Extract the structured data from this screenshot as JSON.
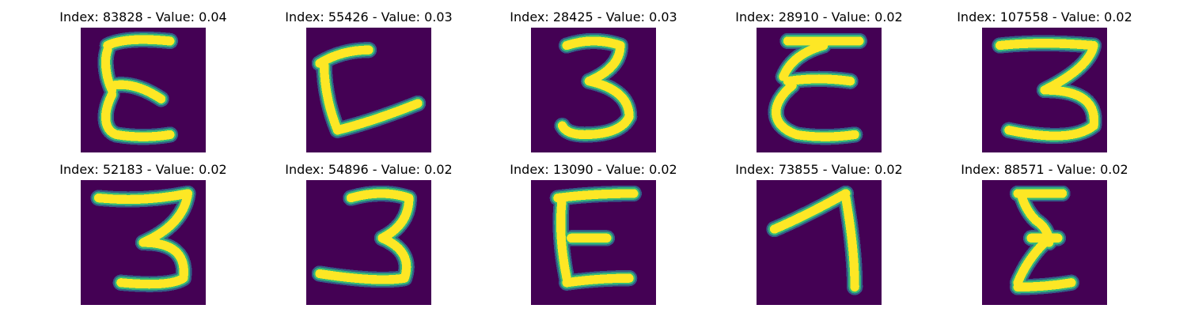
{
  "figure": {
    "background_color": "#ffffff",
    "colormap": [
      "#440154",
      "#31688e",
      "#35b779",
      "#fde725"
    ],
    "panels": [
      {
        "title": "Index: 83828 - Value: 0.04",
        "index": 83828,
        "value": 0.04,
        "glyph": "epsilon"
      },
      {
        "title": "Index: 55426 - Value: 0.03",
        "index": 55426,
        "value": 0.03,
        "glyph": "bracket-l"
      },
      {
        "title": "Index: 28425 - Value: 0.03",
        "index": 28425,
        "value": 0.03,
        "glyph": "three"
      },
      {
        "title": "Index: 28910 - Value: 0.02",
        "index": 28910,
        "value": 0.02,
        "glyph": "epsilon-wide"
      },
      {
        "title": "Index: 107558 - Value: 0.02",
        "index": 107558,
        "value": 0.02,
        "glyph": "three-wide"
      },
      {
        "title": "Index: 52183 - Value: 0.02",
        "index": 52183,
        "value": 0.02,
        "glyph": "three-thin"
      },
      {
        "title": "Index: 54896 - Value: 0.02",
        "index": 54896,
        "value": 0.02,
        "glyph": "three-flat"
      },
      {
        "title": "Index: 13090 - Value: 0.02",
        "index": 13090,
        "value": 0.02,
        "glyph": "e-block"
      },
      {
        "title": "Index: 73855 - Value: 0.02",
        "index": 73855,
        "value": 0.02,
        "glyph": "seven"
      },
      {
        "title": "Index: 88571 - Value: 0.02",
        "index": 88571,
        "value": 0.02,
        "glyph": "sigma"
      }
    ]
  }
}
